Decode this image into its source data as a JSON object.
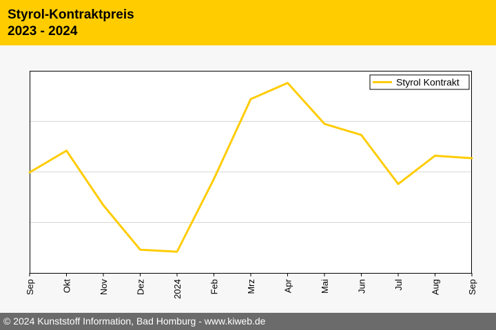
{
  "header": {
    "title": "Styrol-Kontraktpreis",
    "subtitle": "2023 - 2024",
    "background": "#ffcc00"
  },
  "footer": {
    "text": "© 2024 Kunststoff Information, Bad Homburg - www.kiweb.de",
    "background": "#6b6b6b"
  },
  "chart_data": {
    "type": "line",
    "title": "",
    "xlabel": "",
    "ylabel": "",
    "y_tick_labels_shown": false,
    "grid": "horizontal",
    "legend_position": "top-right",
    "categories": [
      "Sep",
      "Okt",
      "Nov",
      "Dez",
      "2024",
      "Feb",
      "Mrz",
      "Apr",
      "Mai",
      "Jun",
      "Jul",
      "Aug",
      "Sep"
    ],
    "series": [
      {
        "name": "Styrol Kontrakt",
        "color": "#ffcc00",
        "values": [
          1.99,
          2.42,
          1.34,
          0.46,
          0.42,
          1.86,
          3.44,
          3.76,
          2.95,
          2.73,
          1.76,
          2.32,
          2.27
        ]
      }
    ],
    "ylim": [
      0,
      4
    ],
    "gridlines": [
      1,
      2,
      3
    ]
  }
}
